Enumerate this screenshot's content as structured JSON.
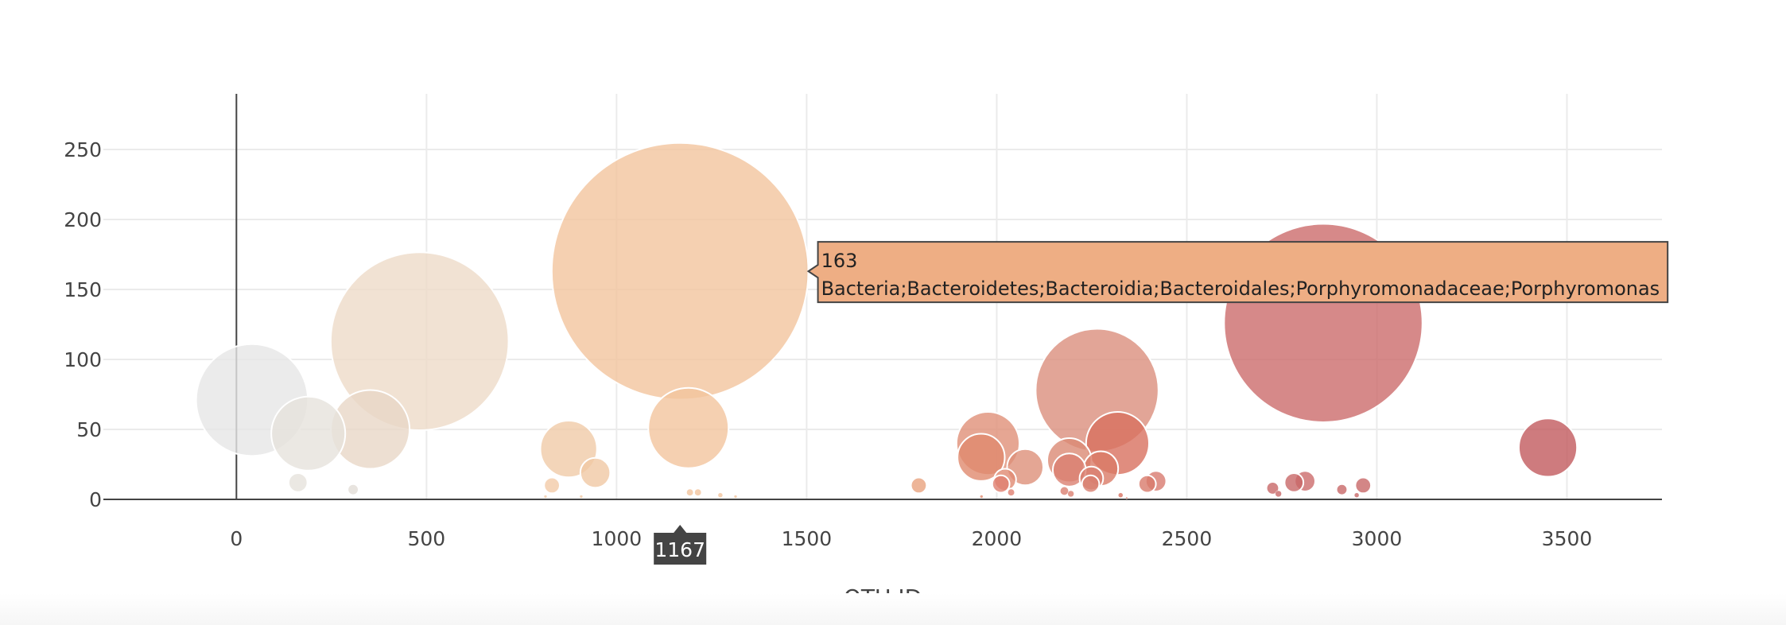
{
  "chart_data": {
    "type": "scatter",
    "mode": "bubble",
    "title": "",
    "xlabel": "OTU ID",
    "ylabel": "",
    "xlim": [
      -350,
      3750
    ],
    "ylim": [
      0,
      300
    ],
    "x_ticks": [
      0,
      500,
      1000,
      1500,
      2000,
      2500,
      3000,
      3500
    ],
    "y_ticks": [
      0,
      50,
      100,
      150,
      200,
      250
    ],
    "grid": true,
    "marker_sizing": "marker size proportional to sample value",
    "colorscale": [
      "#e6e6e6",
      "#eedbc8",
      "#f2c49e",
      "#e9a47c",
      "#db8f7d",
      "#d8705f",
      "#cc6b6b",
      "#c25a5e"
    ],
    "points": [
      {
        "x": 1167,
        "y": 163,
        "color": "#f2c49e"
      },
      {
        "x": 2859,
        "y": 126,
        "color": "#cc6b6b"
      },
      {
        "x": 482,
        "y": 113,
        "color": "#eedbc8"
      },
      {
        "x": 2264,
        "y": 78,
        "color": "#db8f7d"
      },
      {
        "x": 41,
        "y": 71,
        "color": "#e6e6e6"
      },
      {
        "x": 1189,
        "y": 51,
        "color": "#f2c49e"
      },
      {
        "x": 352,
        "y": 50,
        "color": "#e8d7c7"
      },
      {
        "x": 189,
        "y": 47,
        "color": "#e6e2dc"
      },
      {
        "x": 2318,
        "y": 40,
        "color": "#d8705f"
      },
      {
        "x": 1977,
        "y": 40,
        "color": "#e09078"
      },
      {
        "x": 3450,
        "y": 37,
        "color": "#c25a5e"
      },
      {
        "x": 874,
        "y": 36,
        "color": "#f0cba8"
      },
      {
        "x": 1959,
        "y": 30,
        "color": "#e08a6e"
      },
      {
        "x": 2191,
        "y": 28,
        "color": "#db8a74"
      },
      {
        "x": 2075,
        "y": 23,
        "color": "#dd9079"
      },
      {
        "x": 2274,
        "y": 22,
        "color": "#d97a66"
      },
      {
        "x": 2191,
        "y": 21,
        "color": "#db8070"
      },
      {
        "x": 944,
        "y": 19,
        "color": "#f0c8a4"
      },
      {
        "x": 2249,
        "y": 15,
        "color": "#d98070"
      },
      {
        "x": 2022,
        "y": 14,
        "color": "#e08a72"
      },
      {
        "x": 2419,
        "y": 13,
        "color": "#d87b6f"
      },
      {
        "x": 2811,
        "y": 13,
        "color": "#cc6b6b"
      },
      {
        "x": 2782,
        "y": 12,
        "color": "#c86868"
      },
      {
        "x": 162,
        "y": 12,
        "color": "#e6e2dc"
      },
      {
        "x": 2011,
        "y": 11,
        "color": "#e08070"
      },
      {
        "x": 2247,
        "y": 11,
        "color": "#d88070"
      },
      {
        "x": 2396,
        "y": 11,
        "color": "#d87a6c"
      },
      {
        "x": 1795,
        "y": 10,
        "color": "#e8a27e"
      },
      {
        "x": 2964,
        "y": 10,
        "color": "#c86868"
      },
      {
        "x": 830,
        "y": 10,
        "color": "#f2caa8"
      },
      {
        "x": 2726,
        "y": 8,
        "color": "#c86868"
      },
      {
        "x": 307,
        "y": 7,
        "color": "#e2ddd7"
      },
      {
        "x": 2908,
        "y": 7,
        "color": "#c86868"
      },
      {
        "x": 2178,
        "y": 6,
        "color": "#db8070"
      },
      {
        "x": 1193,
        "y": 5,
        "color": "#f2c49e"
      },
      {
        "x": 2038,
        "y": 5,
        "color": "#e08070"
      },
      {
        "x": 1214,
        "y": 5,
        "color": "#f2c49e"
      },
      {
        "x": 2741,
        "y": 4,
        "color": "#c86868"
      },
      {
        "x": 2195,
        "y": 4,
        "color": "#db8070"
      },
      {
        "x": 1273,
        "y": 3,
        "color": "#f2c49e"
      },
      {
        "x": 2326,
        "y": 3,
        "color": "#d8705f"
      },
      {
        "x": 2947,
        "y": 3,
        "color": "#c86868"
      },
      {
        "x": 1313,
        "y": 2,
        "color": "#f2c49e"
      },
      {
        "x": 907,
        "y": 2,
        "color": "#f0c8a4"
      },
      {
        "x": 813,
        "y": 2,
        "color": "#f2caa8"
      },
      {
        "x": 1960,
        "y": 2,
        "color": "#e08a6e"
      },
      {
        "x": 2342,
        "y": 1,
        "color": "#d8705f"
      }
    ],
    "hover": {
      "x": 1167,
      "y": 163,
      "value_label": "163",
      "otu_label": "Bacteria;Bacteroidetes;Bacteroidia;Bacteroidales;Porphyromonadaceae;Porphyromonas",
      "x_label": "1167",
      "color": "#eeae84"
    }
  }
}
